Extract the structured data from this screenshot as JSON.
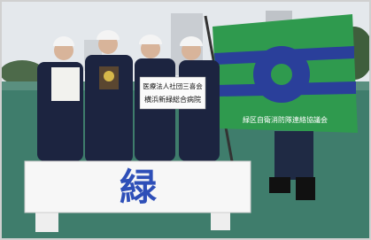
{
  "placard": {
    "line1": "医療法人社団三喜会",
    "line2": "横浜新緑総合病院"
  },
  "flag": {
    "text": "緑区自衛消防隊連絡協議会"
  },
  "sign": {
    "text": "緑"
  }
}
